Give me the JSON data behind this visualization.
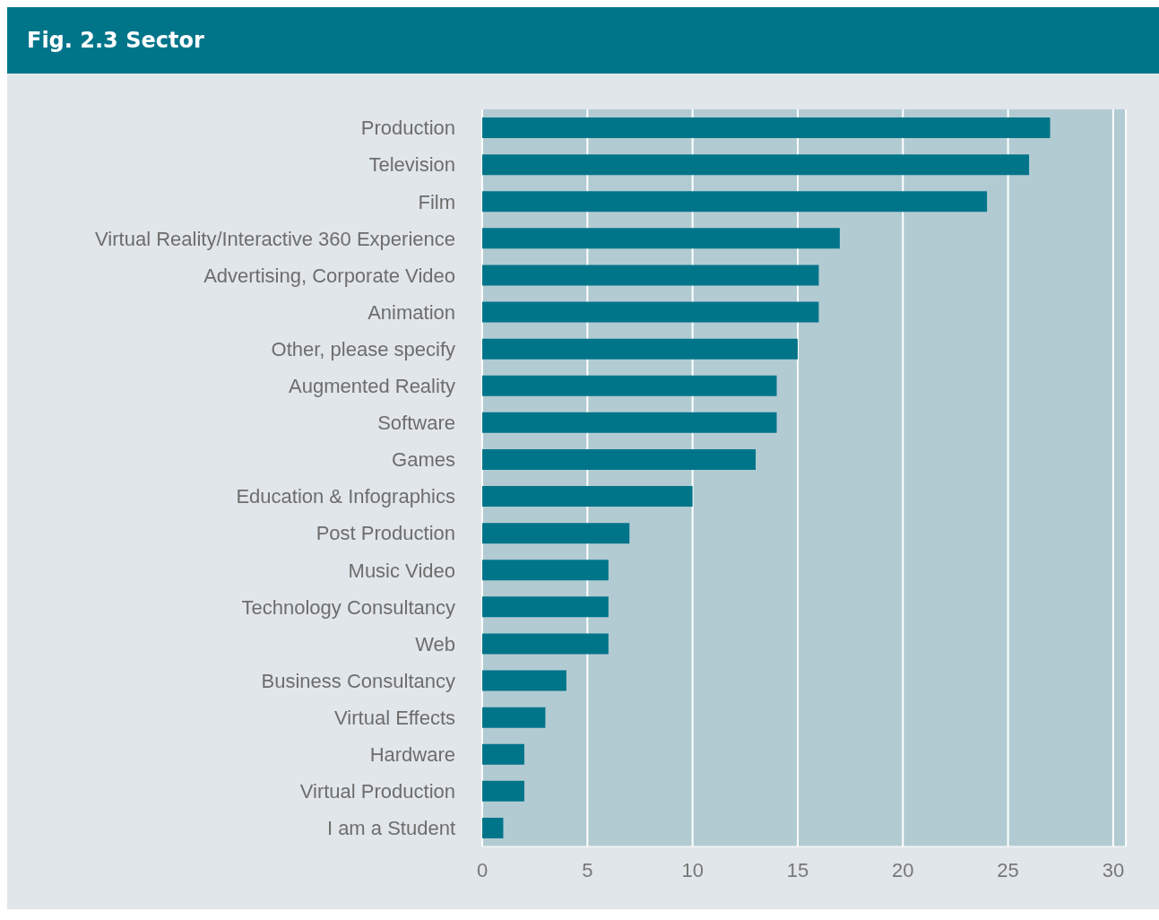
{
  "chart_data": {
    "type": "bar",
    "orientation": "horizontal",
    "title": "Fig. 2.3 Sector",
    "categories": [
      "Production",
      "Television",
      "Film",
      "Virtual Reality/Interactive 360 Experience",
      "Advertising, Corporate Video",
      "Animation",
      "Other, please specify",
      "Augmented Reality",
      "Software",
      "Games",
      "Education & Infographics",
      "Post Production",
      "Music Video",
      "Technology Consultancy",
      "Web",
      "Business Consultancy",
      "Virtual Effects",
      "Hardware",
      "Virtual Production",
      "I am a Student"
    ],
    "values": [
      27,
      26,
      24,
      17,
      16,
      16,
      15,
      14,
      14,
      13,
      10,
      7,
      6,
      6,
      6,
      4,
      3,
      2,
      2,
      1
    ],
    "color": "#00758a",
    "xlim": [
      0,
      30.6
    ],
    "xticks": [
      0,
      5,
      10,
      15,
      20,
      25,
      30
    ],
    "grid": "x"
  }
}
